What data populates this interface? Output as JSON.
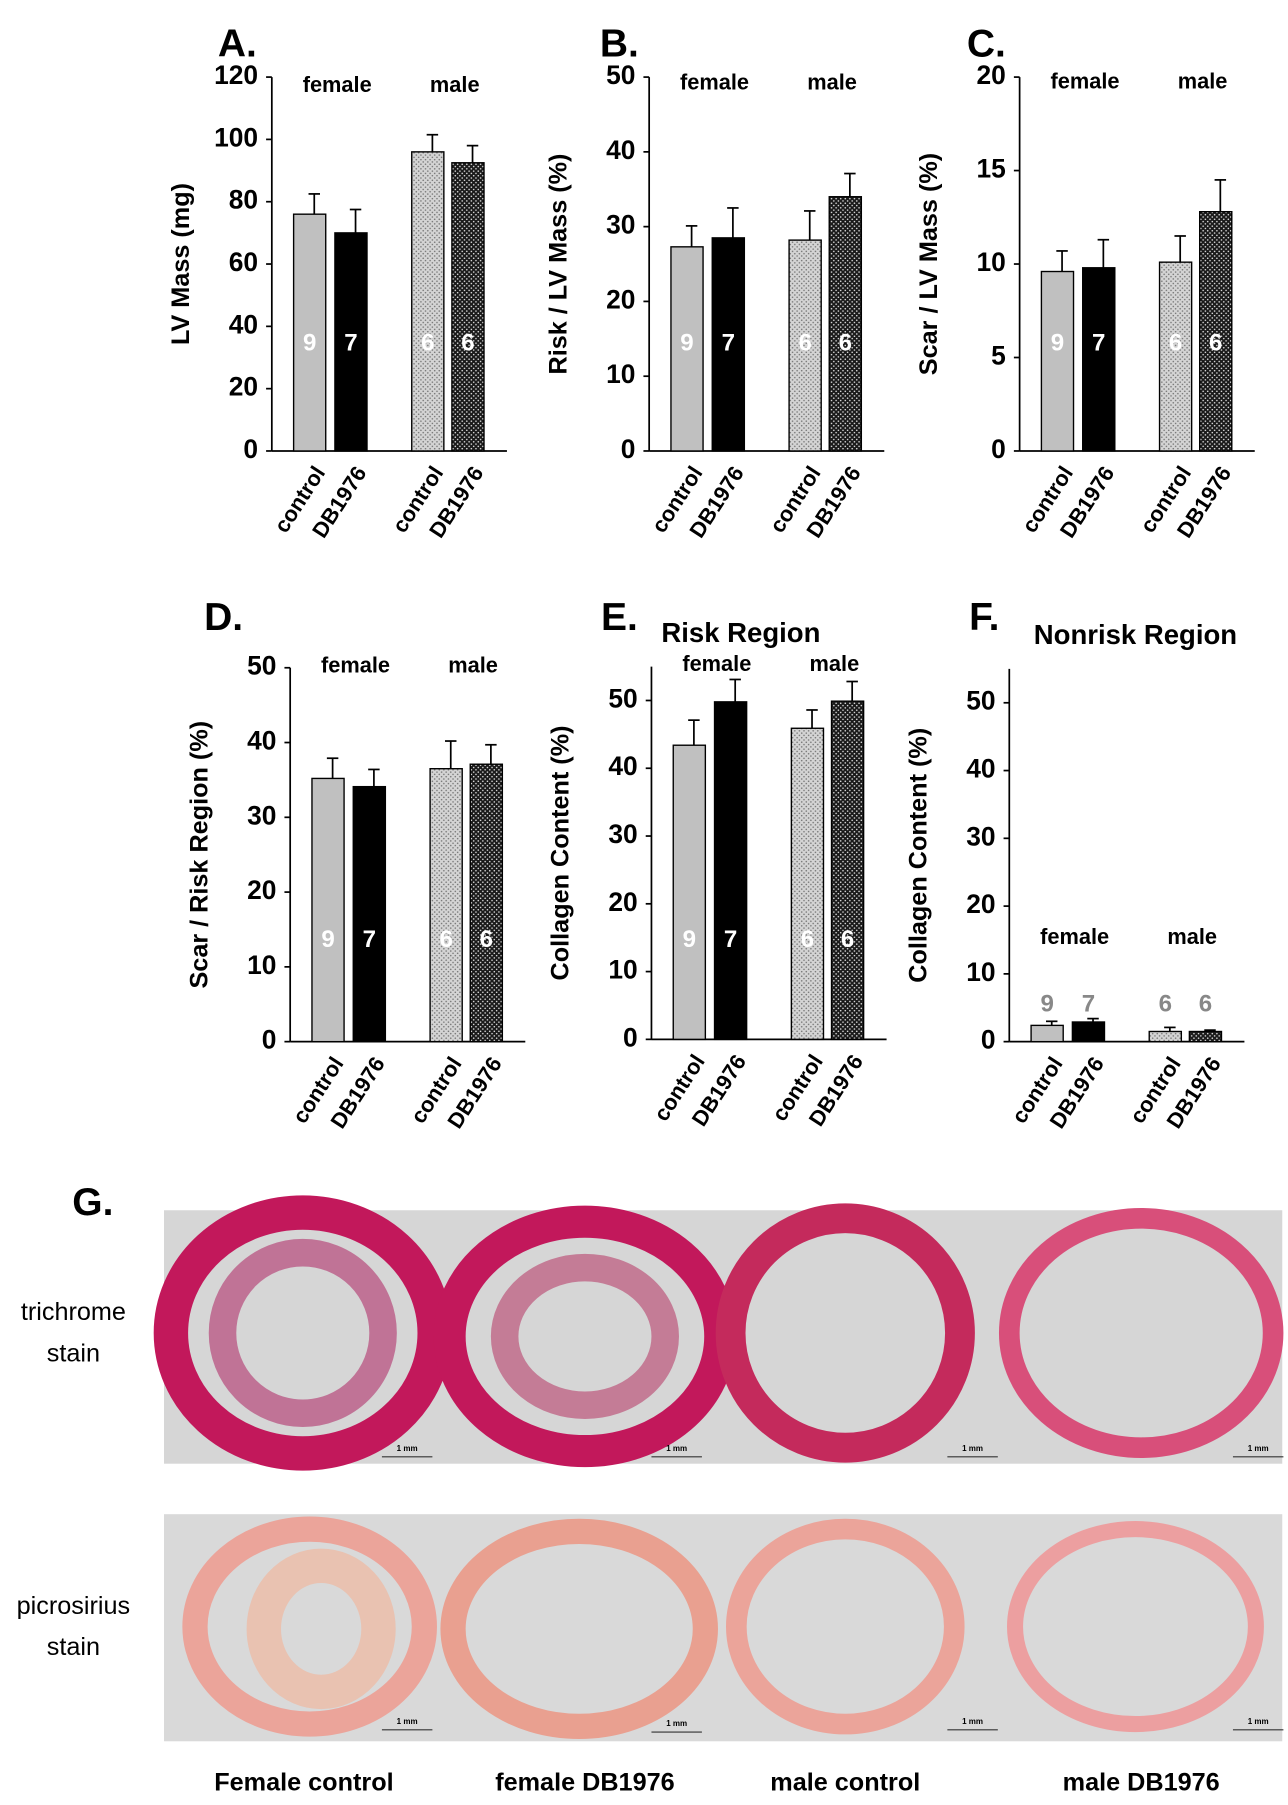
{
  "chart_data": [
    {
      "type": "bar",
      "title": "A.",
      "ylabel": "LV Mass (mg)",
      "categories": [
        "control",
        "DB1976",
        "control",
        "DB1976"
      ],
      "groups": [
        "female",
        "male"
      ],
      "values": [
        76,
        70,
        96,
        92.5
      ],
      "errors": [
        6.5,
        7.5,
        5.5,
        5.5
      ],
      "n_labels": [
        9,
        7,
        6,
        6
      ],
      "colors": [
        "#c0c0c0",
        "#000000",
        "#d4d4d4",
        "#1a1a1a"
      ],
      "dotted": [
        false,
        false,
        true,
        true
      ],
      "ylim": [
        0,
        120
      ],
      "yticks": [
        0,
        20,
        40,
        60,
        80,
        100,
        120
      ]
    },
    {
      "type": "bar",
      "title": "B.",
      "ylabel": "Risk / LV Mass (%)",
      "categories": [
        "control",
        "DB1976",
        "control",
        "DB1976"
      ],
      "groups": [
        "female",
        "male"
      ],
      "values": [
        27.3,
        28.5,
        28.2,
        34
      ],
      "errors": [
        2.8,
        4,
        3.9,
        3.1
      ],
      "n_labels": [
        9,
        7,
        6,
        6
      ],
      "colors": [
        "#c0c0c0",
        "#000000",
        "#d4d4d4",
        "#1a1a1a"
      ],
      "dotted": [
        false,
        false,
        true,
        true
      ],
      "ylim": [
        0,
        50
      ],
      "yticks": [
        0,
        10,
        20,
        30,
        40,
        50
      ]
    },
    {
      "type": "bar",
      "title": "C.",
      "ylabel": "Scar / LV Mass (%)",
      "categories": [
        "control",
        "DB1976",
        "control",
        "DB1976"
      ],
      "groups": [
        "female",
        "male"
      ],
      "values": [
        9.6,
        9.8,
        10.1,
        12.8
      ],
      "errors": [
        1.1,
        1.5,
        1.4,
        1.7
      ],
      "n_labels": [
        9,
        7,
        6,
        6
      ],
      "colors": [
        "#c0c0c0",
        "#000000",
        "#d4d4d4",
        "#1a1a1a"
      ],
      "dotted": [
        false,
        false,
        true,
        true
      ],
      "ylim": [
        0,
        20
      ],
      "yticks": [
        0,
        5,
        10,
        15,
        20
      ]
    },
    {
      "type": "bar",
      "title": "D.",
      "ylabel": "Scar / Risk Region (%)",
      "categories": [
        "control",
        "DB1976",
        "control",
        "DB1976"
      ],
      "groups": [
        "female",
        "male"
      ],
      "values": [
        35.2,
        34.1,
        36.5,
        37.1
      ],
      "errors": [
        2.7,
        2.3,
        3.7,
        2.6
      ],
      "n_labels": [
        9,
        7,
        6,
        6
      ],
      "colors": [
        "#c0c0c0",
        "#000000",
        "#d4d4d4",
        "#1a1a1a"
      ],
      "dotted": [
        false,
        false,
        true,
        true
      ],
      "ylim": [
        0,
        50
      ],
      "yticks": [
        0,
        10,
        20,
        30,
        40,
        50
      ]
    },
    {
      "type": "bar",
      "title": "E.",
      "subtitle": "Risk Region",
      "ylabel": "Collagen Content (%)",
      "categories": [
        "control",
        "DB1976",
        "control",
        "DB1976"
      ],
      "groups": [
        "female",
        "male"
      ],
      "values": [
        43.4,
        49.8,
        45.9,
        49.9
      ],
      "errors": [
        3.7,
        3.3,
        2.7,
        2.9
      ],
      "n_labels": [
        9,
        7,
        6,
        6
      ],
      "colors": [
        "#c0c0c0",
        "#000000",
        "#d4d4d4",
        "#1a1a1a"
      ],
      "dotted": [
        false,
        false,
        true,
        true
      ],
      "ylim": [
        0,
        55
      ],
      "yticks": [
        0,
        10,
        20,
        30,
        40,
        50
      ]
    },
    {
      "type": "bar",
      "title": "F.",
      "subtitle": "Nonrisk Region",
      "ylabel": "Collagen Content (%)",
      "categories": [
        "control",
        "DB1976",
        "control",
        "DB1976"
      ],
      "groups": [
        "female",
        "male"
      ],
      "values": [
        2.4,
        2.9,
        1.5,
        1.5
      ],
      "errors": [
        0.6,
        0.5,
        0.6,
        0.2
      ],
      "n_labels": [
        9,
        7,
        6,
        6
      ],
      "colors": [
        "#c0c0c0",
        "#000000",
        "#d4d4d4",
        "#1a1a1a"
      ],
      "dotted": [
        false,
        false,
        true,
        true
      ],
      "ylim": [
        0,
        55
      ],
      "yticks": [
        0,
        10,
        20,
        30,
        40,
        50
      ]
    }
  ],
  "panel_g": {
    "title": "G.",
    "row_labels": [
      [
        "trichrome",
        "stain"
      ],
      [
        "picrosirius",
        "stain"
      ]
    ],
    "column_labels": [
      "Female control",
      "female DB1976",
      "male control",
      "male DB1976"
    ],
    "scale_label": "1 mm"
  }
}
